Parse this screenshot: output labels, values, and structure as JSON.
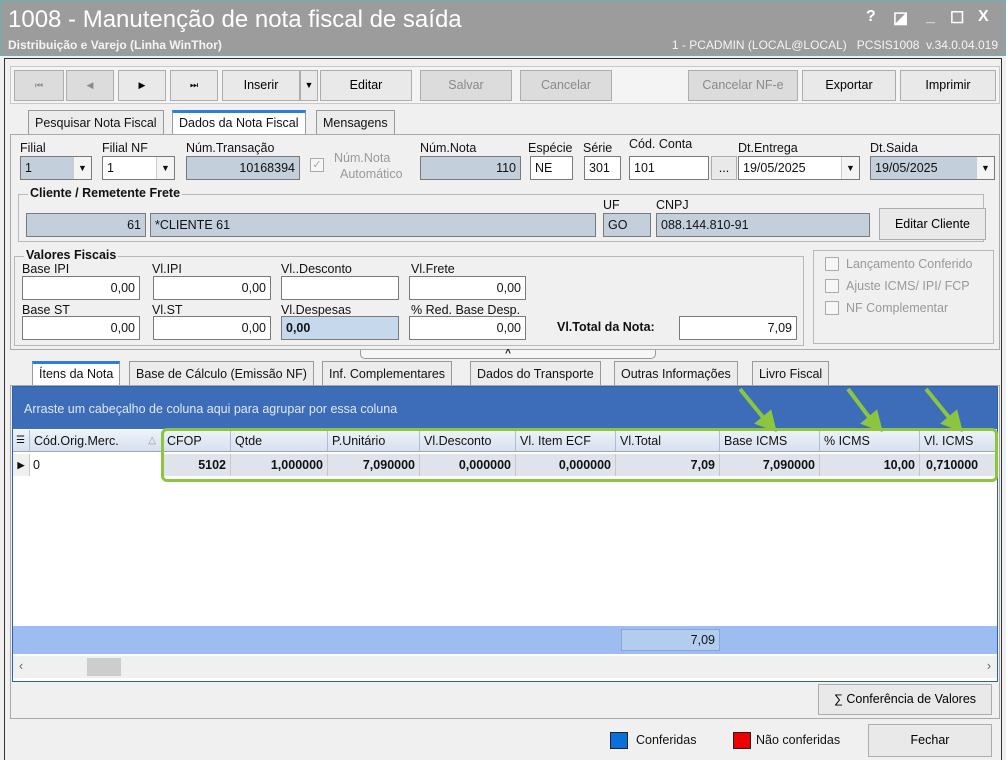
{
  "window": {
    "title": "1008 - Manutenção de nota fiscal de saída",
    "subtitle": "Distribuição e Varejo (Linha WinThor)",
    "user_info": "1 - PCADMIN (LOCAL@LOCAL)   PCSIS1008  v.34.0.04.019",
    "controls": {
      "help": "?",
      "restore_alt": "◪",
      "minimize": "_",
      "maximize": "☐",
      "close": "X"
    }
  },
  "toolbar": {
    "first": "⏮",
    "prev": "◀",
    "next": "▶",
    "last": "⏭",
    "insert": "Inserir",
    "insert_dropdown": "▼",
    "edit": "Editar",
    "save": "Salvar",
    "cancel": "Cancelar",
    "cancel_nfe": "Cancelar NF-e",
    "export": "Exportar",
    "print": "Imprimir"
  },
  "tabs": [
    "Pesquisar Nota Fiscal",
    "Dados da Nota Fiscal",
    "Mensagens"
  ],
  "header_fields": {
    "filial": {
      "label": "Filial",
      "value": "1"
    },
    "filial_nf": {
      "label": "Filial NF",
      "value": "1"
    },
    "num_transacao": {
      "label": "Núm.Transação",
      "value": "10168394"
    },
    "num_nota_auto": {
      "label_1": "Núm.Nota",
      "label_2": "Automático",
      "checked": true
    },
    "num_nota": {
      "label": "Núm.Nota",
      "value": "110"
    },
    "especie": {
      "label": "Espécie",
      "value": "NE"
    },
    "serie": {
      "label": "Série",
      "value": "301"
    },
    "cod_conta": {
      "label": "Cód. Conta",
      "value": "101",
      "button": "..."
    },
    "dt_entrega": {
      "label": "Dt.Entrega",
      "value": "19/05/2025"
    },
    "dt_saida": {
      "label": "Dt.Saida",
      "value": "19/05/2025"
    }
  },
  "cliente": {
    "title": "Cliente / Remetente Frete",
    "code": "61",
    "name": "*CLIENTE 61",
    "uf_label": "UF",
    "uf": "GO",
    "cnpj_label": "CNPJ",
    "cnpj": "088.144.810-91",
    "edit_button": "Editar Cliente"
  },
  "valores": {
    "title": "Valores Fiscais",
    "base_ipi": {
      "label": "Base IPI",
      "value": "0,00"
    },
    "vl_ipi": {
      "label": "Vl.IPI",
      "value": "0,00"
    },
    "vl_desconto": {
      "label": "Vl..Desconto",
      "value": ""
    },
    "vl_frete": {
      "label": "Vl.Frete",
      "value": "0,00"
    },
    "base_st": {
      "label": "Base ST",
      "value": "0,00"
    },
    "vl_st": {
      "label": "Vl.ST",
      "value": "0,00"
    },
    "vl_despesas": {
      "label": "Vl.Despesas",
      "value": "0,00"
    },
    "red_base": {
      "label": "% Red. Base Desp.",
      "value": "0,00"
    },
    "vl_total": {
      "label": "Vl.Total da Nota:",
      "value": "7,09"
    }
  },
  "options": [
    "Lançamento Conferido",
    "Ajuste ICMS/ IPI/ FCP",
    "NF Complementar"
  ],
  "splitter": "^",
  "lower_tabs": [
    "Ítens da Nota",
    "Base de Cálculo (Emissão NF)",
    "Inf. Complementares",
    "Dados do Transporte",
    "Outras Informações",
    "Livro Fiscal"
  ],
  "grid": {
    "group_hint": "Arraste um cabeçalho de coluna aqui para agrupar por essa coluna",
    "columns": [
      "Cód.Orig.Merc.",
      "CFOP",
      "Qtde",
      "P.Unitário",
      "Vl.Desconto",
      "Vl. Item ECF",
      "Vl.Total",
      "Base ICMS",
      "% ICMS",
      "Vl. ICMS"
    ],
    "rows": [
      [
        "0",
        "5102",
        "1,000000",
        "7,090000",
        "0,000000",
        "0,000000",
        "7,09",
        "7,090000",
        "10,00",
        "0,710000"
      ]
    ],
    "footer_total": "7,09",
    "highlight_color": "#8cc63f"
  },
  "conferencia_button": "∑ Conferência de Valores",
  "legend": [
    {
      "label": "Conferidas",
      "color": "#0a6fd8"
    },
    {
      "label": "Não conferidas",
      "color": "#ee0000"
    }
  ],
  "close_button": "Fechar"
}
